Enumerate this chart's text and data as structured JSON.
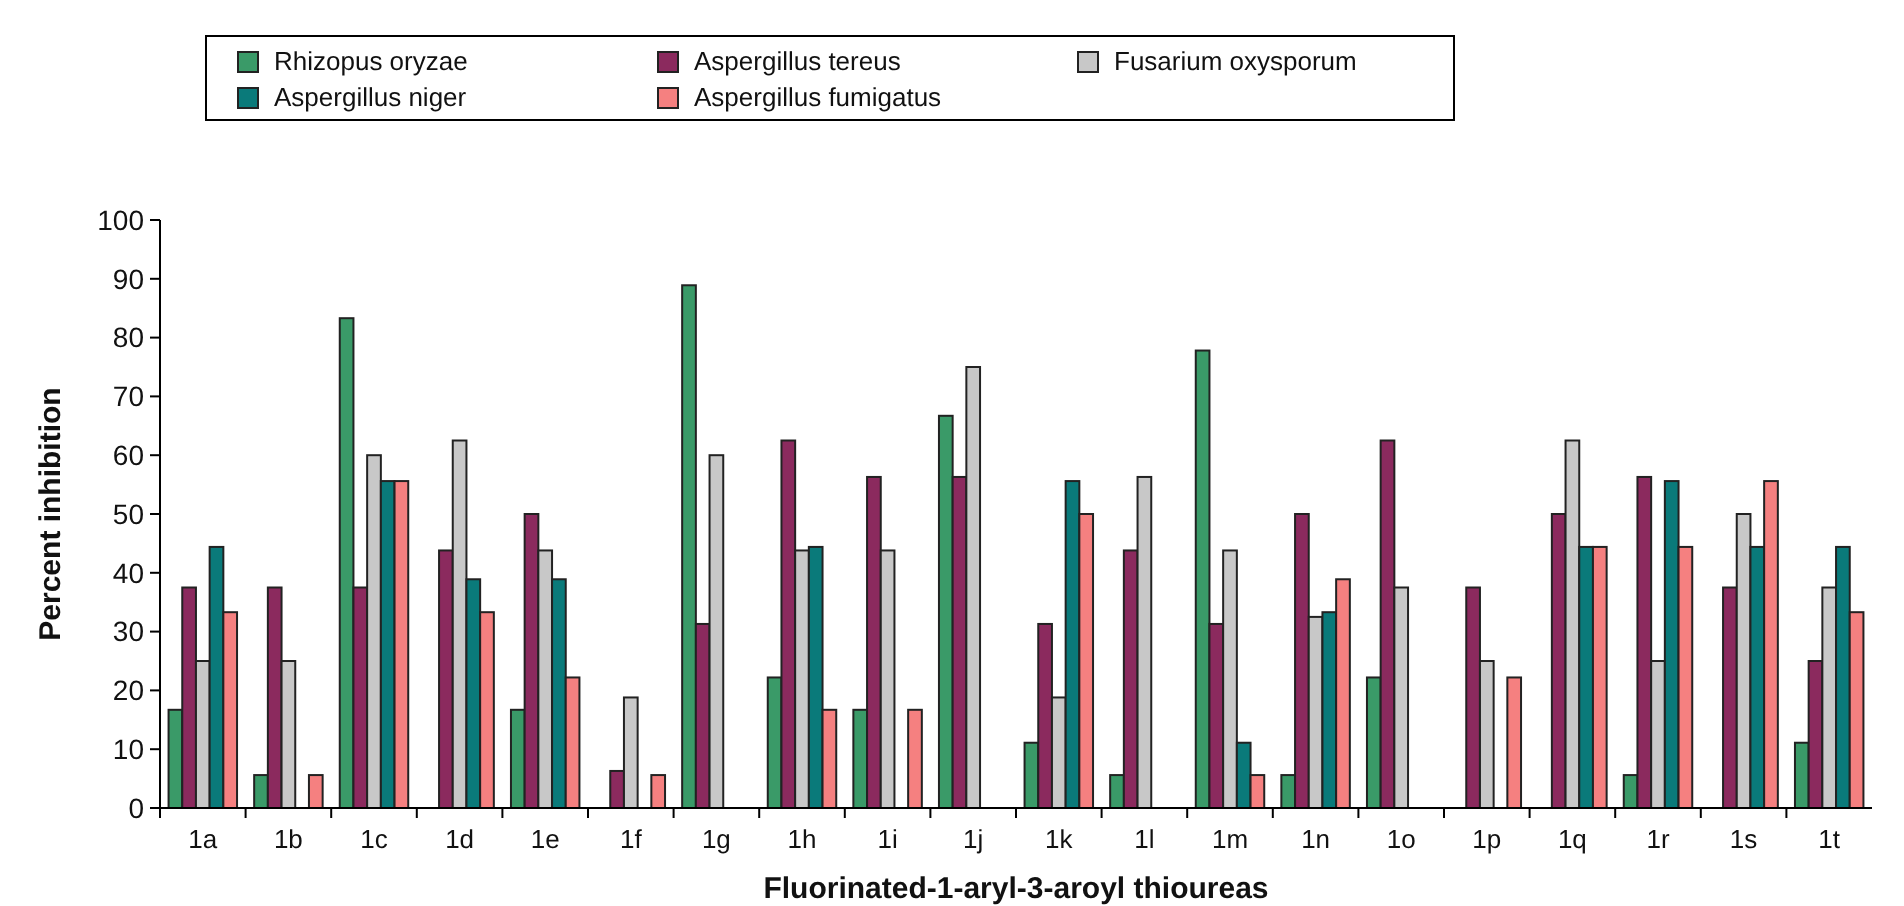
{
  "chart_data": {
    "type": "bar",
    "xlabel": "Fluorinated-1-aryl-3-aroyl thioureas",
    "ylabel": "Percent inhibition",
    "categories": [
      "1a",
      "1b",
      "1c",
      "1d",
      "1e",
      "1f",
      "1g",
      "1h",
      "1i",
      "1j",
      "1k",
      "1l",
      "1m",
      "1n",
      "1o",
      "1p",
      "1q",
      "1r",
      "1s",
      "1t"
    ],
    "series": [
      {
        "name": "Rhizopus oryzae",
        "color": "#3a9a68",
        "values": [
          16.7,
          5.6,
          83.3,
          0,
          16.7,
          0,
          88.9,
          22.2,
          16.7,
          66.7,
          11.1,
          5.6,
          77.8,
          5.6,
          22.2,
          0,
          0,
          5.6,
          0,
          11.1
        ]
      },
      {
        "name": "Aspergillus tereus",
        "color": "#8b2a5e",
        "values": [
          37.5,
          37.5,
          37.5,
          43.8,
          50,
          6.3,
          31.3,
          62.5,
          56.3,
          56.3,
          31.3,
          43.8,
          31.3,
          50,
          62.5,
          37.5,
          50,
          56.3,
          37.5,
          25
        ]
      },
      {
        "name": "Fusarium oxysporum",
        "color": "#c8c8c8",
        "values": [
          25,
          25,
          60,
          62.5,
          43.8,
          18.8,
          60,
          43.8,
          43.8,
          75,
          18.8,
          56.3,
          43.8,
          32.5,
          37.5,
          25,
          62.5,
          25,
          50,
          37.5
        ]
      },
      {
        "name": "Aspergillus niger",
        "color": "#0a7a7a",
        "values": [
          44.4,
          0,
          55.6,
          38.9,
          38.9,
          0,
          0,
          44.4,
          0,
          0,
          55.6,
          0,
          11.1,
          33.3,
          0,
          0,
          44.4,
          55.6,
          44.4,
          44.4
        ]
      },
      {
        "name": "Aspergillus fumigatus",
        "color": "#f58080",
        "values": [
          33.3,
          5.6,
          55.6,
          33.3,
          22.2,
          5.6,
          0,
          16.7,
          16.7,
          0,
          50,
          0,
          5.6,
          38.9,
          0,
          22.2,
          44.4,
          44.4,
          55.6,
          33.3
        ]
      }
    ],
    "ylim": [
      0,
      100
    ],
    "yticks": [
      0,
      10,
      20,
      30,
      40,
      50,
      60,
      70,
      80,
      90,
      100
    ],
    "grid": false,
    "legend": "top"
  }
}
